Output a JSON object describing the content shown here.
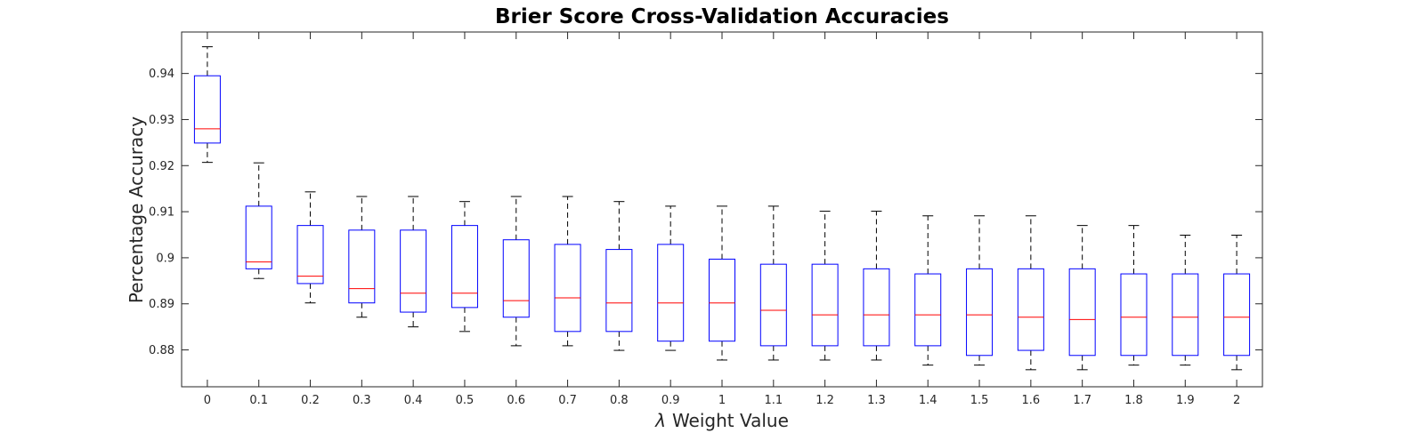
{
  "chart_data": {
    "type": "box",
    "title": "Brier Score Cross-Validation Accuracies",
    "xlabel_symbol": "λ",
    "xlabel": "Weight Value",
    "ylabel": "Percentage Accuracy",
    "ylim": [
      0.872,
      0.949
    ],
    "yticks": [
      "0.88",
      "0.89",
      "0.9",
      "0.91",
      "0.92",
      "0.93",
      "0.94"
    ],
    "categories": [
      "0",
      "0.1",
      "0.2",
      "0.3",
      "0.4",
      "0.5",
      "0.6",
      "0.7",
      "0.8",
      "0.9",
      "1",
      "1.1",
      "1.2",
      "1.3",
      "1.4",
      "1.5",
      "1.6",
      "1.7",
      "1.8",
      "1.9",
      "2"
    ],
    "boxes": [
      {
        "whisker_low": 0.9207,
        "q1": 0.9249,
        "median": 0.928,
        "q3": 0.9395,
        "whisker_high": 0.9458
      },
      {
        "whisker_low": 0.8955,
        "q1": 0.8976,
        "median": 0.8991,
        "q3": 0.9112,
        "whisker_high": 0.9206
      },
      {
        "whisker_low": 0.8902,
        "q1": 0.8944,
        "median": 0.896,
        "q3": 0.907,
        "whisker_high": 0.9143
      },
      {
        "whisker_low": 0.8871,
        "q1": 0.8902,
        "median": 0.8933,
        "q3": 0.906,
        "whisker_high": 0.9133
      },
      {
        "whisker_low": 0.885,
        "q1": 0.8882,
        "median": 0.8923,
        "q3": 0.906,
        "whisker_high": 0.9133
      },
      {
        "whisker_low": 0.884,
        "q1": 0.8892,
        "median": 0.8923,
        "q3": 0.907,
        "whisker_high": 0.9122
      },
      {
        "whisker_low": 0.8809,
        "q1": 0.8871,
        "median": 0.8907,
        "q3": 0.9039,
        "whisker_high": 0.9133
      },
      {
        "whisker_low": 0.8809,
        "q1": 0.884,
        "median": 0.8913,
        "q3": 0.9029,
        "whisker_high": 0.9133
      },
      {
        "whisker_low": 0.8799,
        "q1": 0.884,
        "median": 0.8902,
        "q3": 0.9018,
        "whisker_high": 0.9122
      },
      {
        "whisker_low": 0.8799,
        "q1": 0.8819,
        "median": 0.8902,
        "q3": 0.9029,
        "whisker_high": 0.9112
      },
      {
        "whisker_low": 0.8778,
        "q1": 0.8819,
        "median": 0.8902,
        "q3": 0.8997,
        "whisker_high": 0.9112
      },
      {
        "whisker_low": 0.8778,
        "q1": 0.8809,
        "median": 0.8886,
        "q3": 0.8986,
        "whisker_high": 0.9112
      },
      {
        "whisker_low": 0.8778,
        "q1": 0.8809,
        "median": 0.8876,
        "q3": 0.8986,
        "whisker_high": 0.9101
      },
      {
        "whisker_low": 0.8778,
        "q1": 0.8809,
        "median": 0.8876,
        "q3": 0.8976,
        "whisker_high": 0.9101
      },
      {
        "whisker_low": 0.8767,
        "q1": 0.8809,
        "median": 0.8876,
        "q3": 0.8965,
        "whisker_high": 0.9091
      },
      {
        "whisker_low": 0.8767,
        "q1": 0.8788,
        "median": 0.8876,
        "q3": 0.8976,
        "whisker_high": 0.9091
      },
      {
        "whisker_low": 0.8757,
        "q1": 0.8799,
        "median": 0.8871,
        "q3": 0.8976,
        "whisker_high": 0.9091
      },
      {
        "whisker_low": 0.8757,
        "q1": 0.8788,
        "median": 0.8866,
        "q3": 0.8976,
        "whisker_high": 0.907
      },
      {
        "whisker_low": 0.8767,
        "q1": 0.8788,
        "median": 0.8871,
        "q3": 0.8965,
        "whisker_high": 0.907
      },
      {
        "whisker_low": 0.8767,
        "q1": 0.8788,
        "median": 0.8871,
        "q3": 0.8965,
        "whisker_high": 0.9049
      },
      {
        "whisker_low": 0.8757,
        "q1": 0.8788,
        "median": 0.8871,
        "q3": 0.8965,
        "whisker_high": 0.9049
      }
    ],
    "grid": false,
    "legend": "none",
    "colors": {
      "box": "#0000ff",
      "median": "#ff0000",
      "whisker": "#000000",
      "axis": "#262626"
    }
  }
}
